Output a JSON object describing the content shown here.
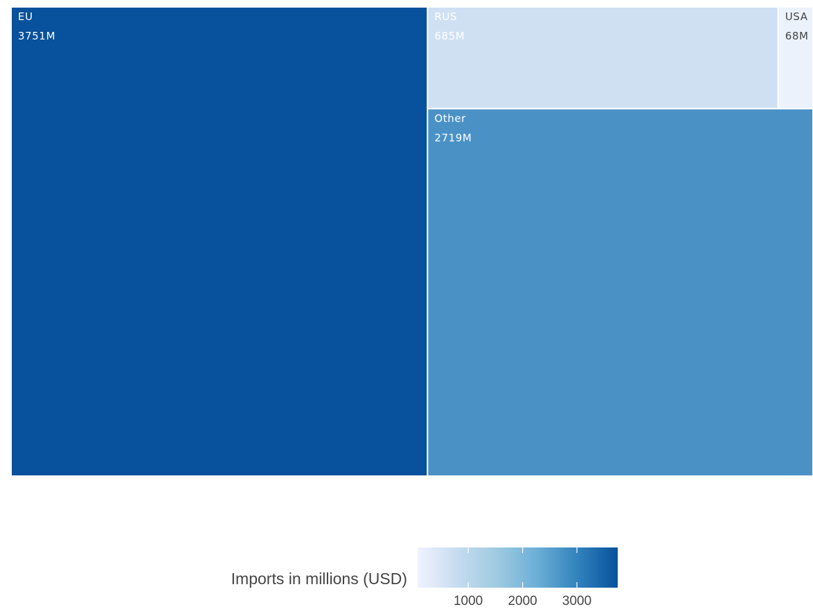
{
  "chart_data": {
    "type": "treemap",
    "items": [
      {
        "label": "EU",
        "value": 3751,
        "value_label": "3751M",
        "color": "#08519c"
      },
      {
        "label": "RUS",
        "value": 685,
        "value_label": "685M",
        "color": "#cfe0f3"
      },
      {
        "label": "USA",
        "value": 68,
        "value_label": "68M",
        "color": "#ebf2fb"
      },
      {
        "label": "Other",
        "value": 2719,
        "value_label": "2719M",
        "color": "#4a92c6"
      }
    ],
    "colorbar": {
      "title": "Imports in millions (USD)",
      "range": [
        68,
        3751
      ],
      "ticks": [
        1000,
        2000,
        3000
      ],
      "tick_labels": [
        "1000",
        "2000",
        "3000"
      ],
      "colors": [
        "#eff3ff",
        "#c6dbef",
        "#9ecae1",
        "#6baed6",
        "#3182bd",
        "#08519c"
      ]
    }
  }
}
